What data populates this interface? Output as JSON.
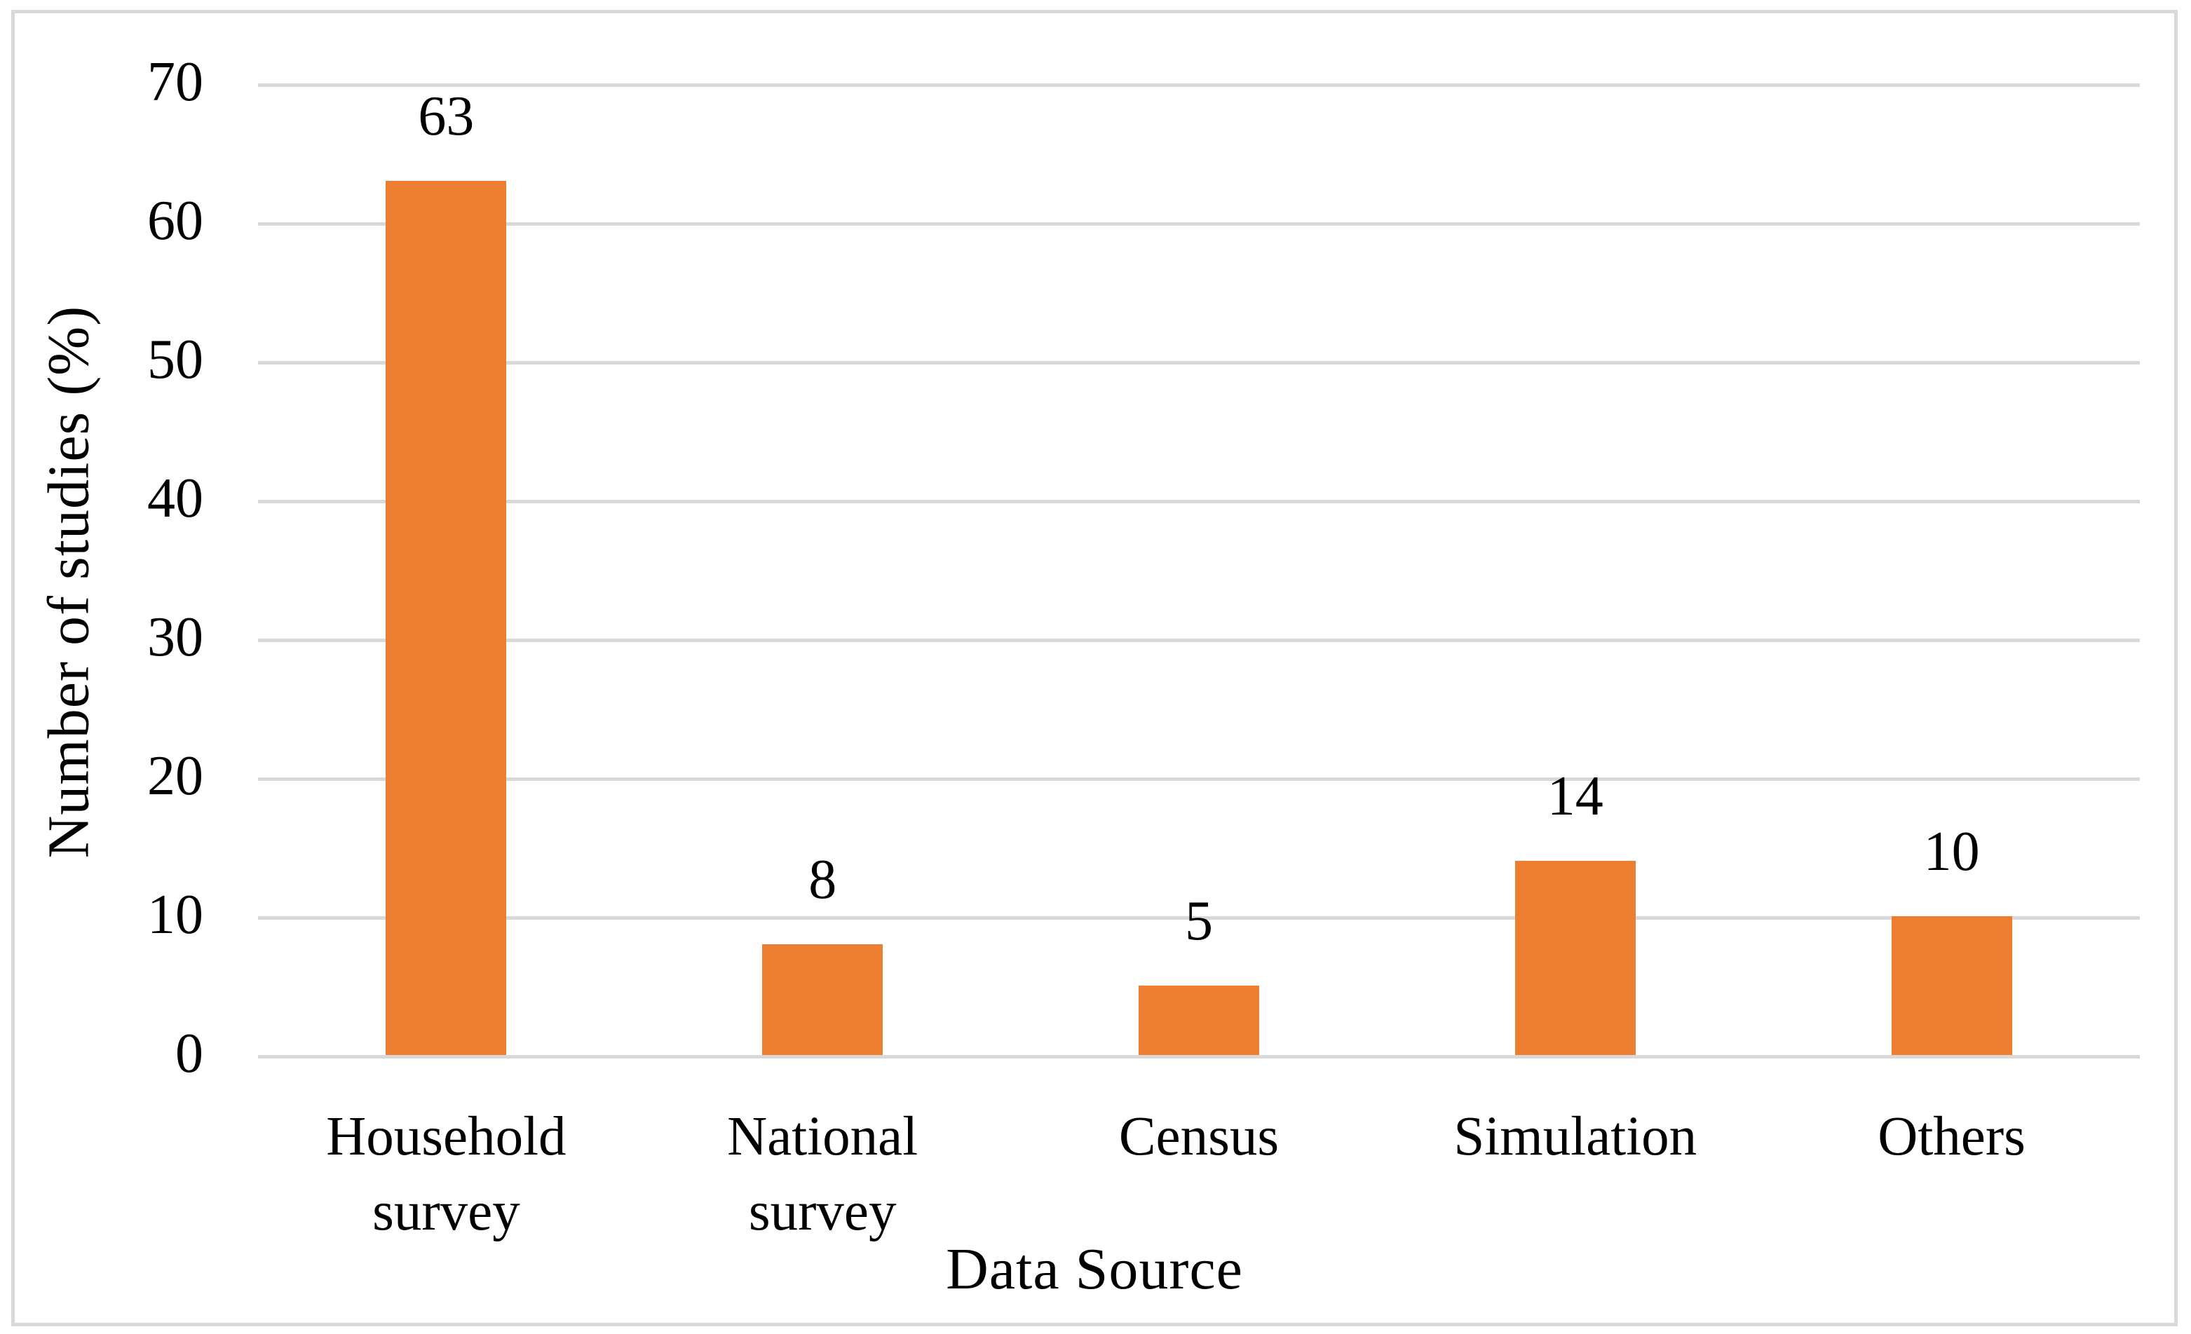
{
  "chart_data": {
    "type": "bar",
    "title": "",
    "categories": [
      "Household\nsurvey",
      "National\nsurvey",
      "Census",
      "Simulation",
      "Others"
    ],
    "values": [
      63,
      8,
      5,
      14,
      10
    ],
    "data_labels": [
      "63",
      "8",
      "5",
      "14",
      "10"
    ],
    "xlabel": "Data Source",
    "ylabel": "Number of studies (%)",
    "ylim": [
      0,
      70
    ],
    "ytick_step": 10,
    "yticks": [
      0,
      10,
      20,
      30,
      40,
      50,
      60,
      70
    ],
    "grid": "horizontal-gridlines",
    "legend_position": "none",
    "colors": {
      "bar": "#ED7D31",
      "gridline": "#D9D9D9",
      "frame_border": "#D9D9D9",
      "text": "#000000",
      "background": "#FFFFFF"
    }
  }
}
